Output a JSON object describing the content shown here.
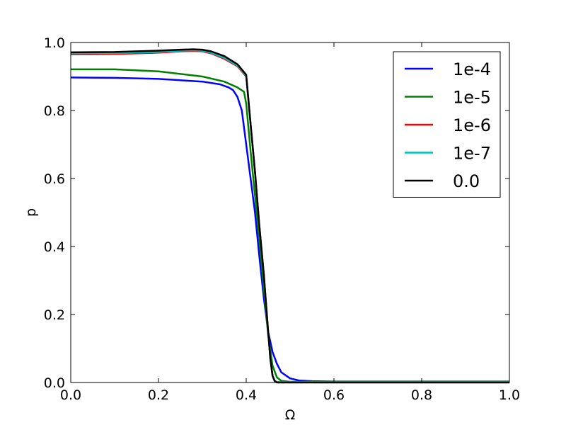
{
  "chart_data": {
    "type": "line",
    "title": "",
    "xlabel": "Ω",
    "ylabel": "p",
    "xlim": [
      0.0,
      1.0
    ],
    "ylim": [
      0.0,
      1.0
    ],
    "xticks": [
      "0.0",
      "0.2",
      "0.4",
      "0.6",
      "0.8",
      "1.0"
    ],
    "yticks": [
      "0.0",
      "0.2",
      "0.4",
      "0.6",
      "0.8",
      "1.0"
    ],
    "grid": false,
    "legend_position": "top-right",
    "series": [
      {
        "name": "1e-4",
        "color": "#0000ff",
        "x": [
          0.0,
          0.1,
          0.2,
          0.3,
          0.34,
          0.36,
          0.37,
          0.38,
          0.39,
          0.4,
          0.41,
          0.42,
          0.43,
          0.44,
          0.45,
          0.46,
          0.47,
          0.48,
          0.5,
          0.52,
          0.55,
          0.6,
          0.7,
          0.8,
          0.9,
          1.0
        ],
        "y": [
          0.897,
          0.896,
          0.893,
          0.885,
          0.877,
          0.868,
          0.86,
          0.84,
          0.8,
          0.7,
          0.6,
          0.5,
          0.37,
          0.25,
          0.15,
          0.09,
          0.055,
          0.03,
          0.012,
          0.006,
          0.004,
          0.003,
          0.003,
          0.003,
          0.003,
          0.003
        ]
      },
      {
        "name": "1e-5",
        "color": "#008000",
        "x": [
          0.0,
          0.1,
          0.2,
          0.3,
          0.35,
          0.38,
          0.395,
          0.4,
          0.41,
          0.42,
          0.43,
          0.44,
          0.45,
          0.46,
          0.47,
          0.48,
          0.5,
          0.55,
          0.6,
          0.7,
          0.8,
          0.9,
          1.0
        ],
        "y": [
          0.921,
          0.921,
          0.915,
          0.9,
          0.885,
          0.868,
          0.855,
          0.82,
          0.68,
          0.55,
          0.42,
          0.28,
          0.14,
          0.05,
          0.015,
          0.005,
          0.002,
          0.002,
          0.002,
          0.002,
          0.002,
          0.002,
          0.002
        ]
      },
      {
        "name": "1e-6",
        "color": "#ff0000",
        "x": [
          0.0,
          0.1,
          0.2,
          0.25,
          0.28,
          0.3,
          0.32,
          0.35,
          0.38,
          0.4,
          0.41,
          0.42,
          0.43,
          0.44,
          0.45,
          0.455,
          0.46,
          0.465,
          0.47,
          0.5,
          0.6,
          0.7,
          0.8,
          0.9,
          1.0
        ],
        "y": [
          0.965,
          0.966,
          0.97,
          0.974,
          0.975,
          0.974,
          0.968,
          0.952,
          0.93,
          0.9,
          0.76,
          0.62,
          0.46,
          0.32,
          0.15,
          0.07,
          0.02,
          0.005,
          0.001,
          0.001,
          0.001,
          0.001,
          0.001,
          0.001,
          0.001
        ]
      },
      {
        "name": "1e-7",
        "color": "#00bfbf",
        "x": [
          0.0,
          0.1,
          0.2,
          0.25,
          0.28,
          0.3,
          0.32,
          0.35,
          0.38,
          0.4,
          0.41,
          0.42,
          0.43,
          0.44,
          0.45,
          0.455,
          0.46,
          0.465,
          0.47,
          0.5,
          0.6,
          0.7,
          0.8,
          0.9,
          1.0
        ],
        "y": [
          0.968,
          0.969,
          0.972,
          0.976,
          0.977,
          0.976,
          0.97,
          0.955,
          0.932,
          0.902,
          0.76,
          0.62,
          0.46,
          0.32,
          0.15,
          0.07,
          0.02,
          0.005,
          0.001,
          0.001,
          0.001,
          0.001,
          0.001,
          0.001,
          0.001
        ]
      },
      {
        "name": "0.0",
        "color": "#000000",
        "x": [
          0.0,
          0.1,
          0.2,
          0.25,
          0.28,
          0.3,
          0.32,
          0.35,
          0.38,
          0.4,
          0.41,
          0.42,
          0.43,
          0.44,
          0.45,
          0.455,
          0.46,
          0.465,
          0.47,
          0.5,
          0.6,
          0.7,
          0.8,
          0.9,
          1.0
        ],
        "y": [
          0.971,
          0.972,
          0.976,
          0.979,
          0.98,
          0.979,
          0.974,
          0.96,
          0.936,
          0.905,
          0.76,
          0.62,
          0.46,
          0.32,
          0.15,
          0.07,
          0.02,
          0.004,
          0.0,
          0.0,
          0.0,
          0.0,
          0.0,
          0.0,
          0.0
        ]
      }
    ]
  }
}
